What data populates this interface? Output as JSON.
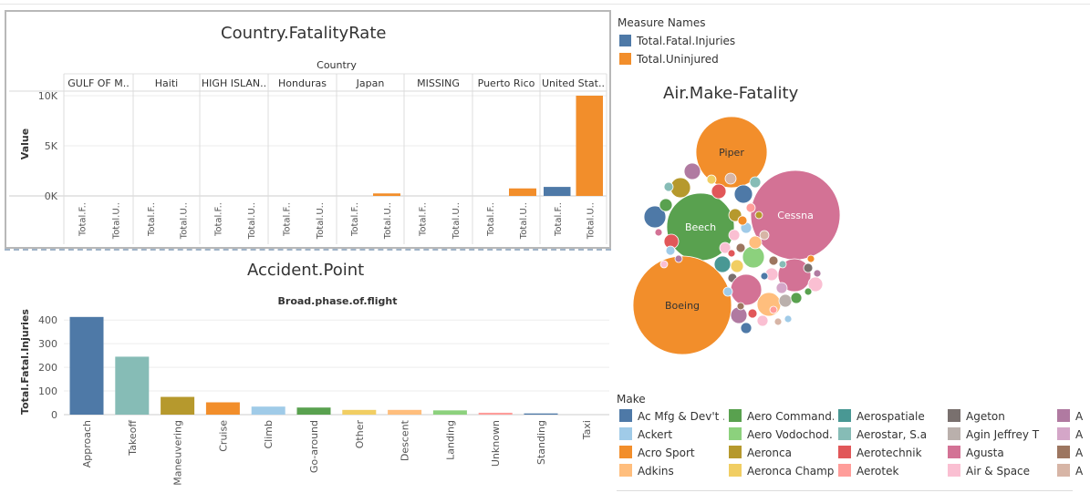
{
  "country_chart": {
    "title": "Country.FatalityRate",
    "col_header": "Country",
    "y_title": "Value",
    "y_ticks": [
      "10K",
      "5K",
      "0K"
    ],
    "countries": [
      "GULF OF M..",
      "Haiti",
      "HIGH ISLAN..",
      "Honduras",
      "Japan",
      "MISSING",
      "Puerto Rico",
      "United Stat.."
    ],
    "measure_ticks": [
      "Total.F..",
      "Total.U.."
    ]
  },
  "phase_chart": {
    "title": "Accident.Point",
    "x_title": "Broad.phase.of.flight",
    "y_title": "Total.Fatal.Injuries",
    "y_ticks": [
      "400",
      "300",
      "200",
      "100",
      "0"
    ]
  },
  "bubble_chart": {
    "title": "Air.Make-Fatality",
    "labels": [
      "Piper",
      "Beech",
      "Cessna",
      "Boeing"
    ]
  },
  "measure_legend": {
    "title": "Measure Names",
    "items": [
      {
        "label": "Total.Fatal.Injuries",
        "color": "#4e79a7"
      },
      {
        "label": "Total.Uninjured",
        "color": "#f28e2b"
      }
    ]
  },
  "make_legend": {
    "title": "Make",
    "items": [
      {
        "label": "Ac Mfg & Dev't ..",
        "color": "#4e79a7"
      },
      {
        "label": "Ackert",
        "color": "#a0cbe8"
      },
      {
        "label": "Acro Sport",
        "color": "#f28e2b"
      },
      {
        "label": "Adkins",
        "color": "#ffbe7d"
      },
      {
        "label": "Aero Command..",
        "color": "#59a14f"
      },
      {
        "label": "Aero Vodochod..",
        "color": "#8cd17d"
      },
      {
        "label": "Aeronca",
        "color": "#b6992d"
      },
      {
        "label": "Aeronca Champ..",
        "color": "#f1ce63"
      },
      {
        "label": "Aerospatiale",
        "color": "#499894"
      },
      {
        "label": "Aerostar, S.a",
        "color": "#86bcb6"
      },
      {
        "label": "Aerotechnik",
        "color": "#e15759"
      },
      {
        "label": "Aerotek",
        "color": "#ff9d9a"
      },
      {
        "label": "Ageton",
        "color": "#79706e"
      },
      {
        "label": "Agin Jeffrey T",
        "color": "#bab0ac"
      },
      {
        "label": "Agusta",
        "color": "#d37295"
      },
      {
        "label": "Air & Space",
        "color": "#fabfd2"
      },
      {
        "label": "A",
        "color": "#b07aa1"
      },
      {
        "label": "A",
        "color": "#d4a6c8"
      },
      {
        "label": "A",
        "color": "#9d7660"
      },
      {
        "label": "A",
        "color": "#d7b5a6"
      }
    ]
  },
  "chart_data": [
    {
      "type": "bar",
      "title": "Country.FatalityRate",
      "xlabel": "Country",
      "ylabel": "Value",
      "ylim": [
        0,
        10000
      ],
      "categories": [
        "GULF OF M..",
        "Haiti",
        "HIGH ISLAN..",
        "Honduras",
        "Japan",
        "MISSING",
        "Puerto Rico",
        "United Stat.."
      ],
      "series": [
        {
          "name": "Total.Fatal.Injuries",
          "color": "#4e79a7",
          "values": [
            0,
            0,
            0,
            0,
            0,
            0,
            0,
            900
          ]
        },
        {
          "name": "Total.Uninjured",
          "color": "#f28e2b",
          "values": [
            0,
            0,
            0,
            0,
            250,
            0,
            750,
            10000
          ]
        }
      ],
      "grid": true
    },
    {
      "type": "bar",
      "title": "Accident.Point",
      "xlabel": "Broad.phase.of.flight",
      "ylabel": "Total.Fatal.Injuries",
      "ylim": [
        0,
        420
      ],
      "categories": [
        "Approach",
        "Takeoff",
        "Maneuvering",
        "Cruise",
        "Climb",
        "Go-around",
        "Other",
        "Descent",
        "Landing",
        "Unknown",
        "Standing",
        "Taxi"
      ],
      "values": [
        413,
        245,
        75,
        52,
        34,
        30,
        20,
        20,
        18,
        8,
        5,
        0
      ],
      "colors": [
        "#4e79a7",
        "#86bcb6",
        "#b6992d",
        "#f28e2b",
        "#a0cbe8",
        "#59a14f",
        "#f1ce63",
        "#ffbe7d",
        "#8cd17d",
        "#ff9d9a",
        "#4e79a7",
        "#bab0ac"
      ],
      "grid": true
    },
    {
      "type": "bubble",
      "title": "Air.Make-Fatality",
      "labels": [
        "Piper",
        "Beech",
        "Cessna",
        "Boeing"
      ],
      "colors": [
        "#f28e2b",
        "#59a14f",
        "#d37295",
        "#f28e2b"
      ]
    }
  ]
}
